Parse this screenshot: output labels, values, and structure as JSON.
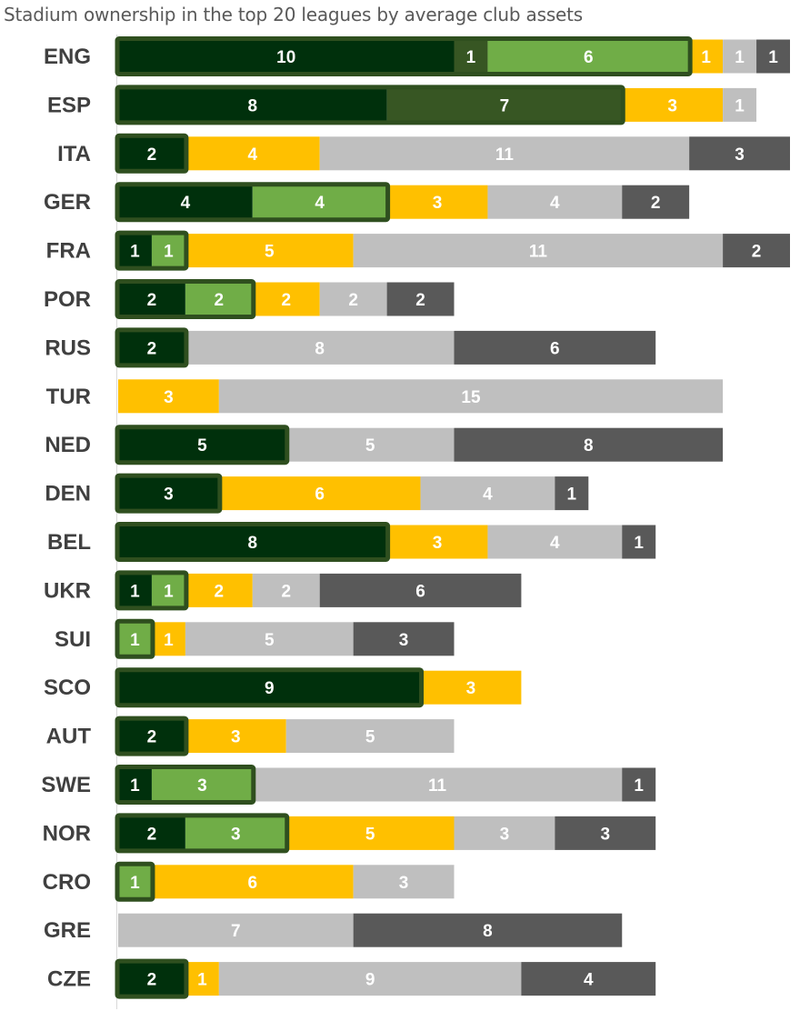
{
  "chart_data": {
    "type": "bar",
    "orientation": "horizontal",
    "stacked": true,
    "title": "Stadium ownership in the top 20 leagues by average club assets",
    "categories": [
      "ENG",
      "ESP",
      "ITA",
      "GER",
      "FRA",
      "POR",
      "RUS",
      "TUR",
      "NED",
      "DEN",
      "BEL",
      "UKR",
      "SUI",
      "SCO",
      "AUT",
      "SWE",
      "NOR",
      "CRO",
      "GRE",
      "CZE"
    ],
    "series": [
      {
        "color": "#00300c",
        "label_color": "#ffffff",
        "values": [
          10,
          8,
          2,
          4,
          1,
          2,
          2,
          0,
          5,
          3,
          8,
          1,
          0,
          9,
          2,
          1,
          2,
          0,
          0,
          2
        ]
      },
      {
        "color": "#375623",
        "label_color": "#ffffff",
        "values": [
          1,
          7,
          0,
          0,
          0,
          0,
          0,
          0,
          0,
          0,
          0,
          0,
          0,
          0,
          0,
          0,
          0,
          0,
          0,
          0
        ]
      },
      {
        "color": "#70ad47",
        "label_color": "#ffffff",
        "values": [
          6,
          0,
          0,
          4,
          1,
          2,
          0,
          0,
          0,
          0,
          0,
          1,
          1,
          0,
          0,
          3,
          3,
          1,
          0,
          0
        ]
      },
      {
        "color": "#ffc000",
        "label_color": "#ffffff",
        "values": [
          1,
          3,
          4,
          3,
          5,
          2,
          0,
          3,
          0,
          6,
          3,
          2,
          1,
          3,
          3,
          0,
          5,
          6,
          0,
          1
        ]
      },
      {
        "color": "#bfbfbf",
        "label_color": "#ffffff",
        "values": [
          1,
          1,
          11,
          4,
          11,
          2,
          8,
          15,
          5,
          4,
          4,
          2,
          5,
          0,
          5,
          11,
          3,
          3,
          7,
          9
        ]
      },
      {
        "color": "#595959",
        "label_color": "#ffffff",
        "values": [
          1,
          0,
          3,
          2,
          2,
          2,
          6,
          0,
          8,
          1,
          1,
          6,
          3,
          0,
          0,
          1,
          3,
          0,
          8,
          4
        ]
      }
    ],
    "highlight_outline_color": "#2f4f1f",
    "xlim": [
      0,
      20
    ],
    "grid": false,
    "legend": "none"
  }
}
